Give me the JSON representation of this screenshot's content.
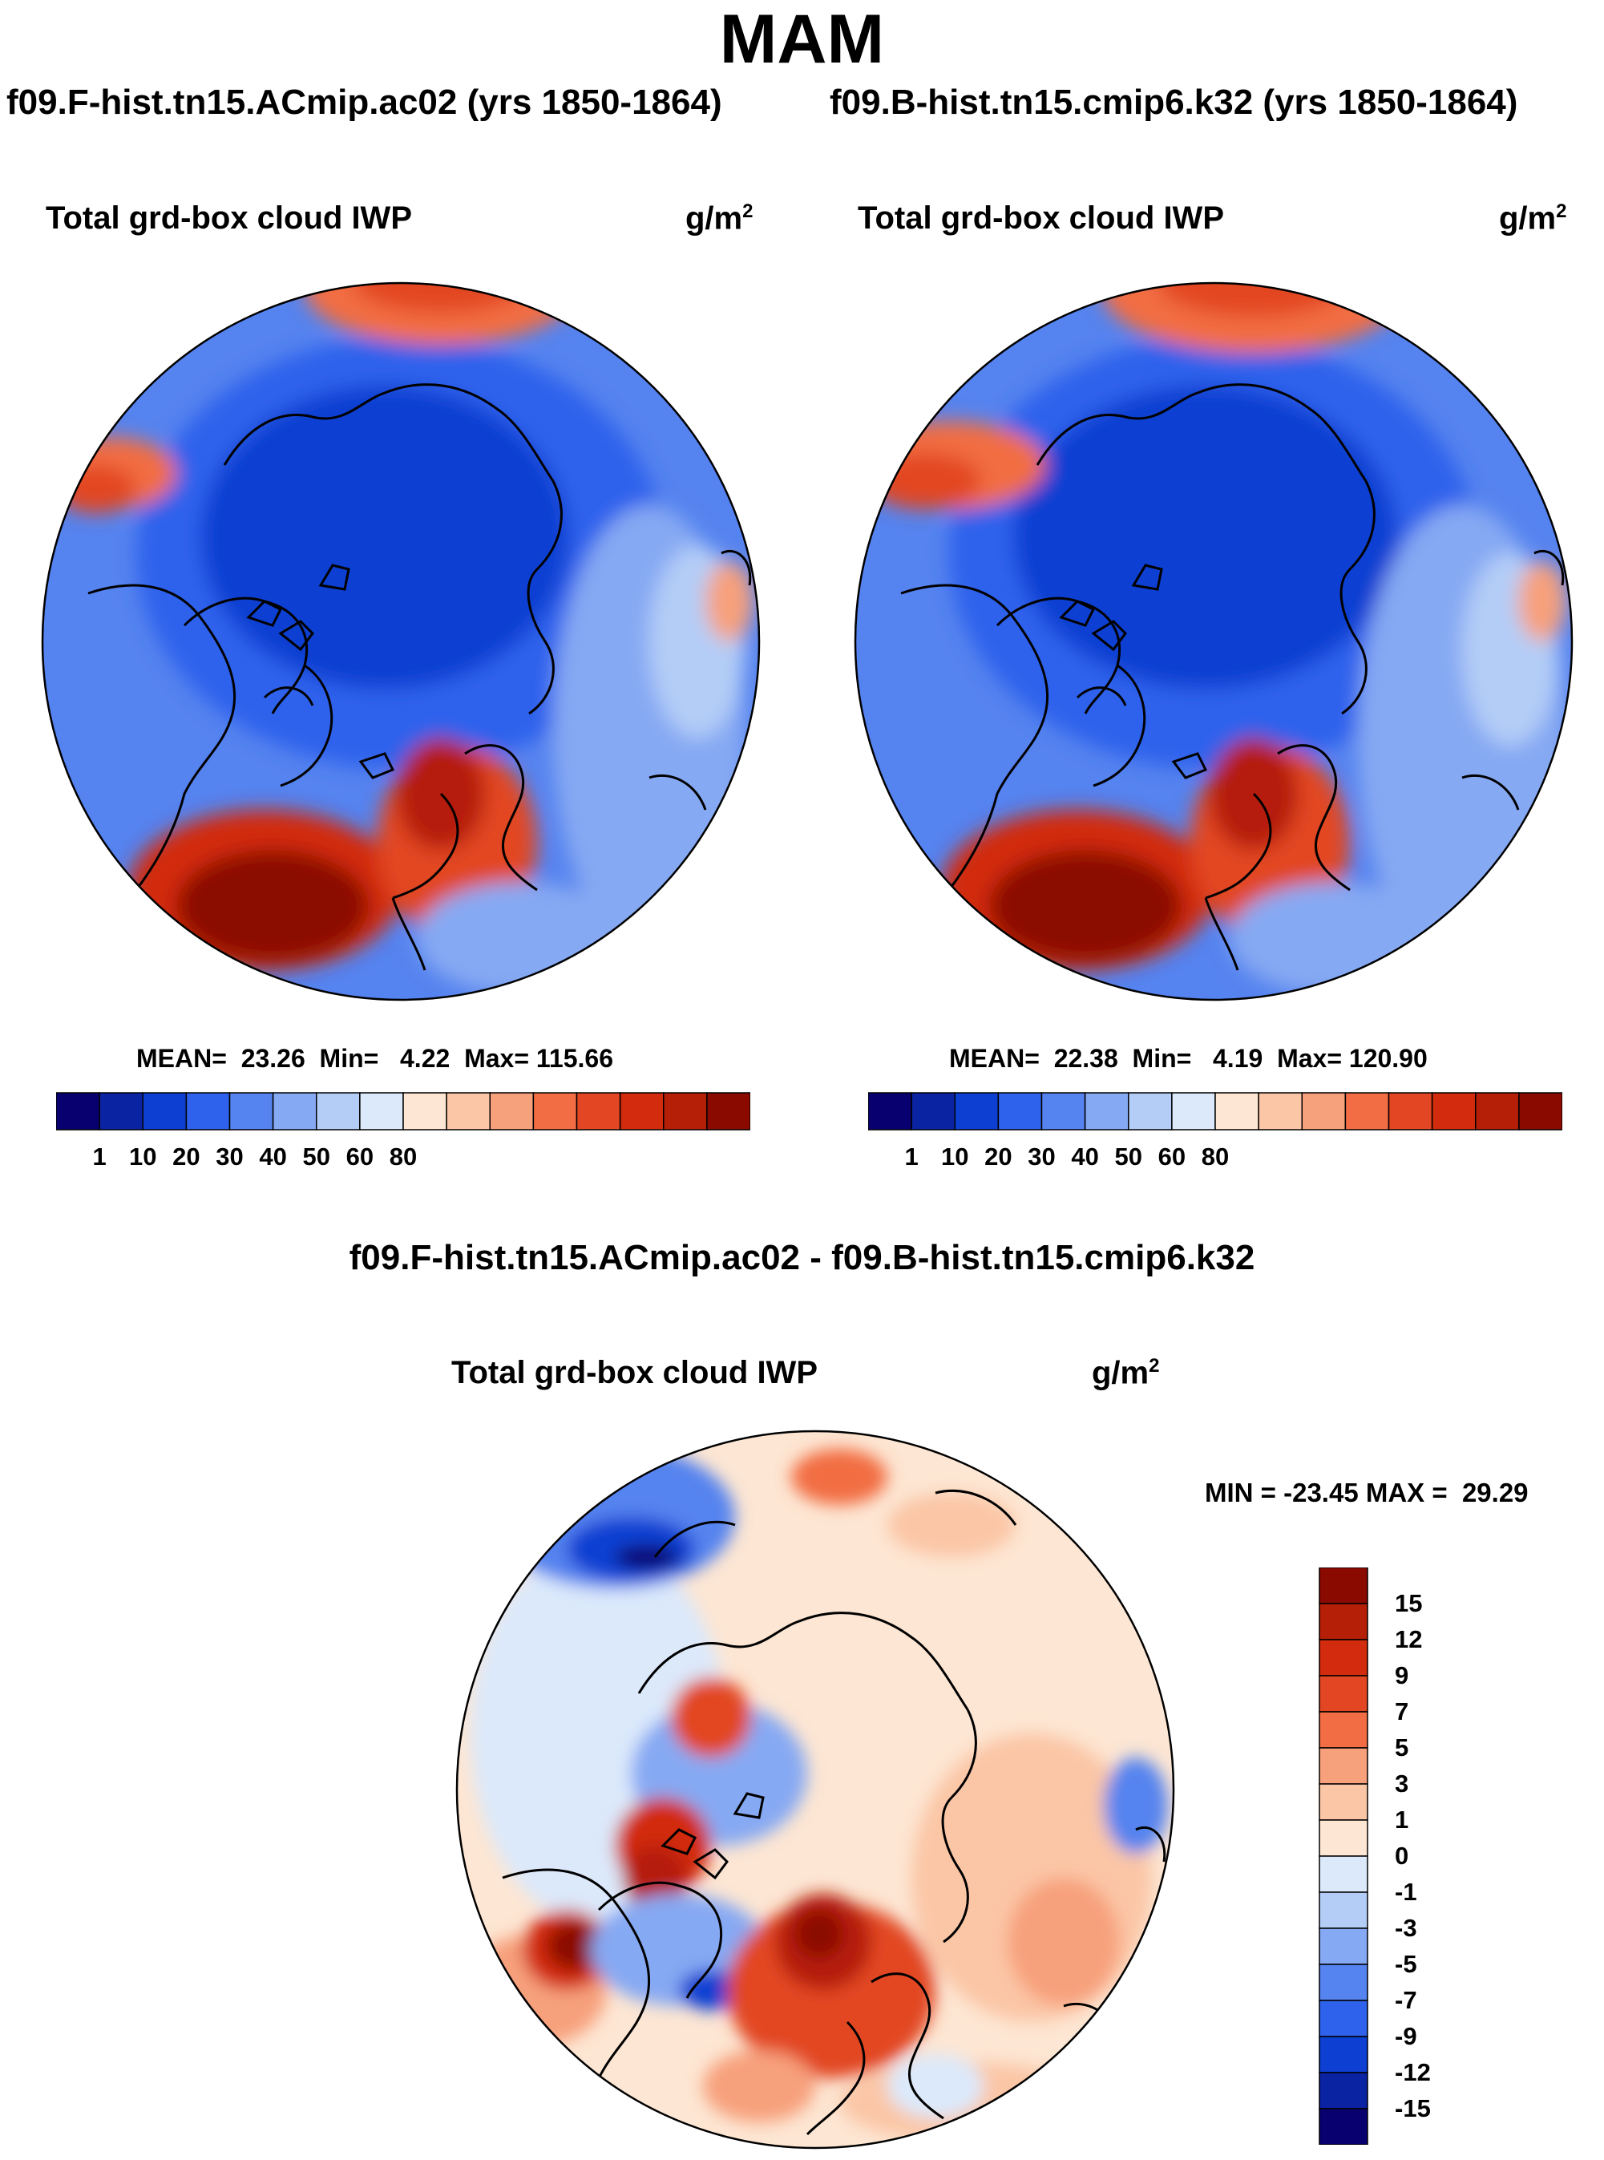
{
  "title": "MAM",
  "panels": [
    {
      "case_label": "f09.F-hist.tn15.ACmip.ac02 (yrs 1850-1864)",
      "variable": "Total grd-box cloud IWP",
      "units_base": "g/m",
      "units_exp": "2",
      "stats": "MEAN=  23.26  Min=   4.22  Max= 115.66"
    },
    {
      "case_label": "f09.B-hist.tn15.cmip6.k32 (yrs 1850-1864)",
      "variable": "Total grd-box cloud IWP",
      "units_base": "g/m",
      "units_exp": "2",
      "stats": "MEAN=  22.38  Min=   4.19  Max= 120.90"
    }
  ],
  "diff_panel": {
    "title": "f09.F-hist.tn15.ACmip.ac02 - f09.B-hist.tn15.cmip6.k32",
    "variable": "Total grd-box cloud IWP",
    "units_base": "g/m",
    "units_exp": "2",
    "minmax": "MIN = -23.45 MAX =  29.29"
  },
  "chart_data": [
    {
      "type": "heatmap",
      "projection": "north-polar-stereographic",
      "title": "Total grd-box cloud IWP",
      "units": "g/m2",
      "case": "f09.F-hist.tn15.ACmip.ac02 (yrs 1850-1864)",
      "season": "MAM",
      "mean": 23.26,
      "min": 4.22,
      "max": 115.66,
      "colorbar_ticks": [
        "1",
        "10",
        "20",
        "30",
        "40",
        "50",
        "60",
        "80"
      ],
      "colors": [
        "#08006e",
        "#0a23a3",
        "#0c3fd2",
        "#2f62ec",
        "#5583ef",
        "#86a9f3",
        "#b4cdf7",
        "#dce9fb",
        "#fde6d3",
        "#fbc6a6",
        "#f7a07c",
        "#f26d43",
        "#e24622",
        "#d22b0d",
        "#b51e07",
        "#8b0a00"
      ]
    },
    {
      "type": "heatmap",
      "projection": "north-polar-stereographic",
      "title": "Total grd-box cloud IWP",
      "units": "g/m2",
      "case": "f09.B-hist.tn15.cmip6.k32 (yrs 1850-1864)",
      "season": "MAM",
      "mean": 22.38,
      "min": 4.19,
      "max": 120.9,
      "colorbar_ticks": [
        "1",
        "10",
        "20",
        "30",
        "40",
        "50",
        "60",
        "80"
      ],
      "colors": [
        "#08006e",
        "#0a23a3",
        "#0c3fd2",
        "#2f62ec",
        "#5583ef",
        "#86a9f3",
        "#b4cdf7",
        "#dce9fb",
        "#fde6d3",
        "#fbc6a6",
        "#f7a07c",
        "#f26d43",
        "#e24622",
        "#d22b0d",
        "#b51e07",
        "#8b0a00"
      ]
    },
    {
      "type": "heatmap",
      "projection": "north-polar-stereographic",
      "title": "Total grd-box cloud IWP",
      "units": "g/m2",
      "case": "f09.F-hist.tn15.ACmip.ac02 - f09.B-hist.tn15.cmip6.k32",
      "min": -23.45,
      "max": 29.29,
      "colorbar_ticks": [
        "15",
        "12",
        "9",
        "7",
        "5",
        "3",
        "1",
        "0",
        "-1",
        "-3",
        "-5",
        "-7",
        "-9",
        "-12",
        "-15"
      ],
      "colors": [
        "#8b0a00",
        "#b51e07",
        "#d22b0d",
        "#e24622",
        "#f26d43",
        "#f7a07c",
        "#fbc6a6",
        "#fde6d3",
        "#dce9fb",
        "#b4cdf7",
        "#86a9f3",
        "#5583ef",
        "#2f62ec",
        "#0c3fd2",
        "#0a23a3",
        "#08006e"
      ]
    }
  ]
}
